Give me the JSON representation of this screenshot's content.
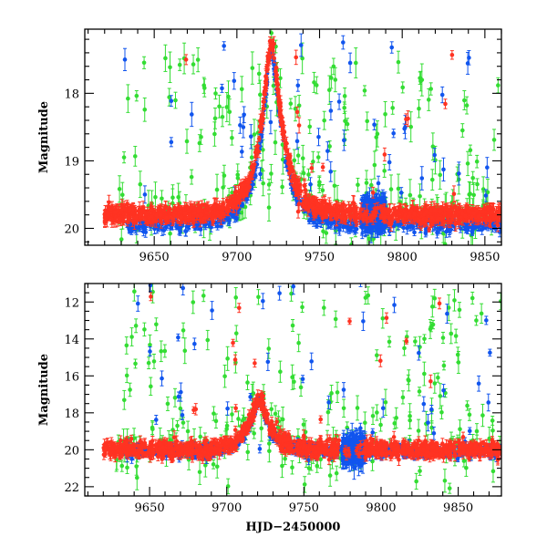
{
  "chart_data": [
    {
      "type": "scatter",
      "title": "",
      "xlabel": "",
      "ylabel": "Magnitude",
      "xlim": [
        9608,
        9860
      ],
      "ylim": [
        20.25,
        17.05
      ],
      "y_inverted": true,
      "xticks": [
        9650,
        9700,
        9750,
        9800,
        9850
      ],
      "yticks": [
        18,
        19,
        20
      ],
      "series": [
        {
          "name": "green",
          "color": "#33dd33"
        },
        {
          "name": "blue",
          "color": "#1155ee"
        },
        {
          "name": "red",
          "color": "#ff3322"
        }
      ],
      "events": {
        "baseline_mag": 19.8,
        "peak_hjd": 9721,
        "peak_mag": 17.3,
        "blue_dense_interval": [
          9775,
          9790
        ]
      }
    },
    {
      "type": "scatter",
      "title": "",
      "xlabel": "HJD−2450000",
      "ylabel": "Magnitude",
      "xlim": [
        9608,
        9878
      ],
      "ylim": [
        22.5,
        11.0
      ],
      "y_inverted": true,
      "xticks": [
        9650,
        9700,
        9750,
        9800,
        9850
      ],
      "yticks": [
        12,
        14,
        16,
        18,
        20,
        22
      ],
      "series": [
        {
          "name": "green",
          "color": "#33dd33"
        },
        {
          "name": "blue",
          "color": "#1155ee"
        },
        {
          "name": "red",
          "color": "#ff3322"
        }
      ],
      "events": {
        "baseline_mag": 20.0,
        "peak_hjd": 9721,
        "peak_mag": 17.3,
        "blue_dense_interval": [
          9775,
          9790
        ]
      }
    }
  ]
}
